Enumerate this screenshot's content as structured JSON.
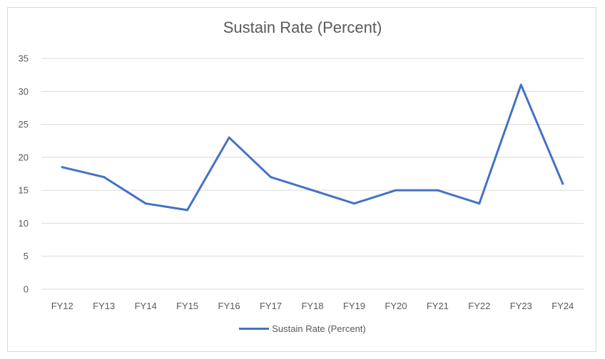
{
  "chart_data": {
    "type": "line",
    "title": "Sustain Rate (Percent)",
    "xlabel": "",
    "ylabel": "",
    "categories": [
      "FY12",
      "FY13",
      "FY14",
      "FY15",
      "FY16",
      "FY17",
      "FY18",
      "FY19",
      "FY20",
      "FY21",
      "FY22",
      "FY23",
      "FY24"
    ],
    "series": [
      {
        "name": "Sustain Rate (Percent)",
        "values": [
          18.5,
          17,
          13,
          12,
          23,
          17,
          15,
          13,
          15,
          15,
          13,
          31,
          16
        ]
      }
    ],
    "ylim": [
      0,
      35
    ],
    "yticks": [
      0,
      5,
      10,
      15,
      20,
      25,
      30,
      35
    ],
    "grid": true,
    "legend_position": "bottom",
    "series_color": "#4472C4"
  }
}
